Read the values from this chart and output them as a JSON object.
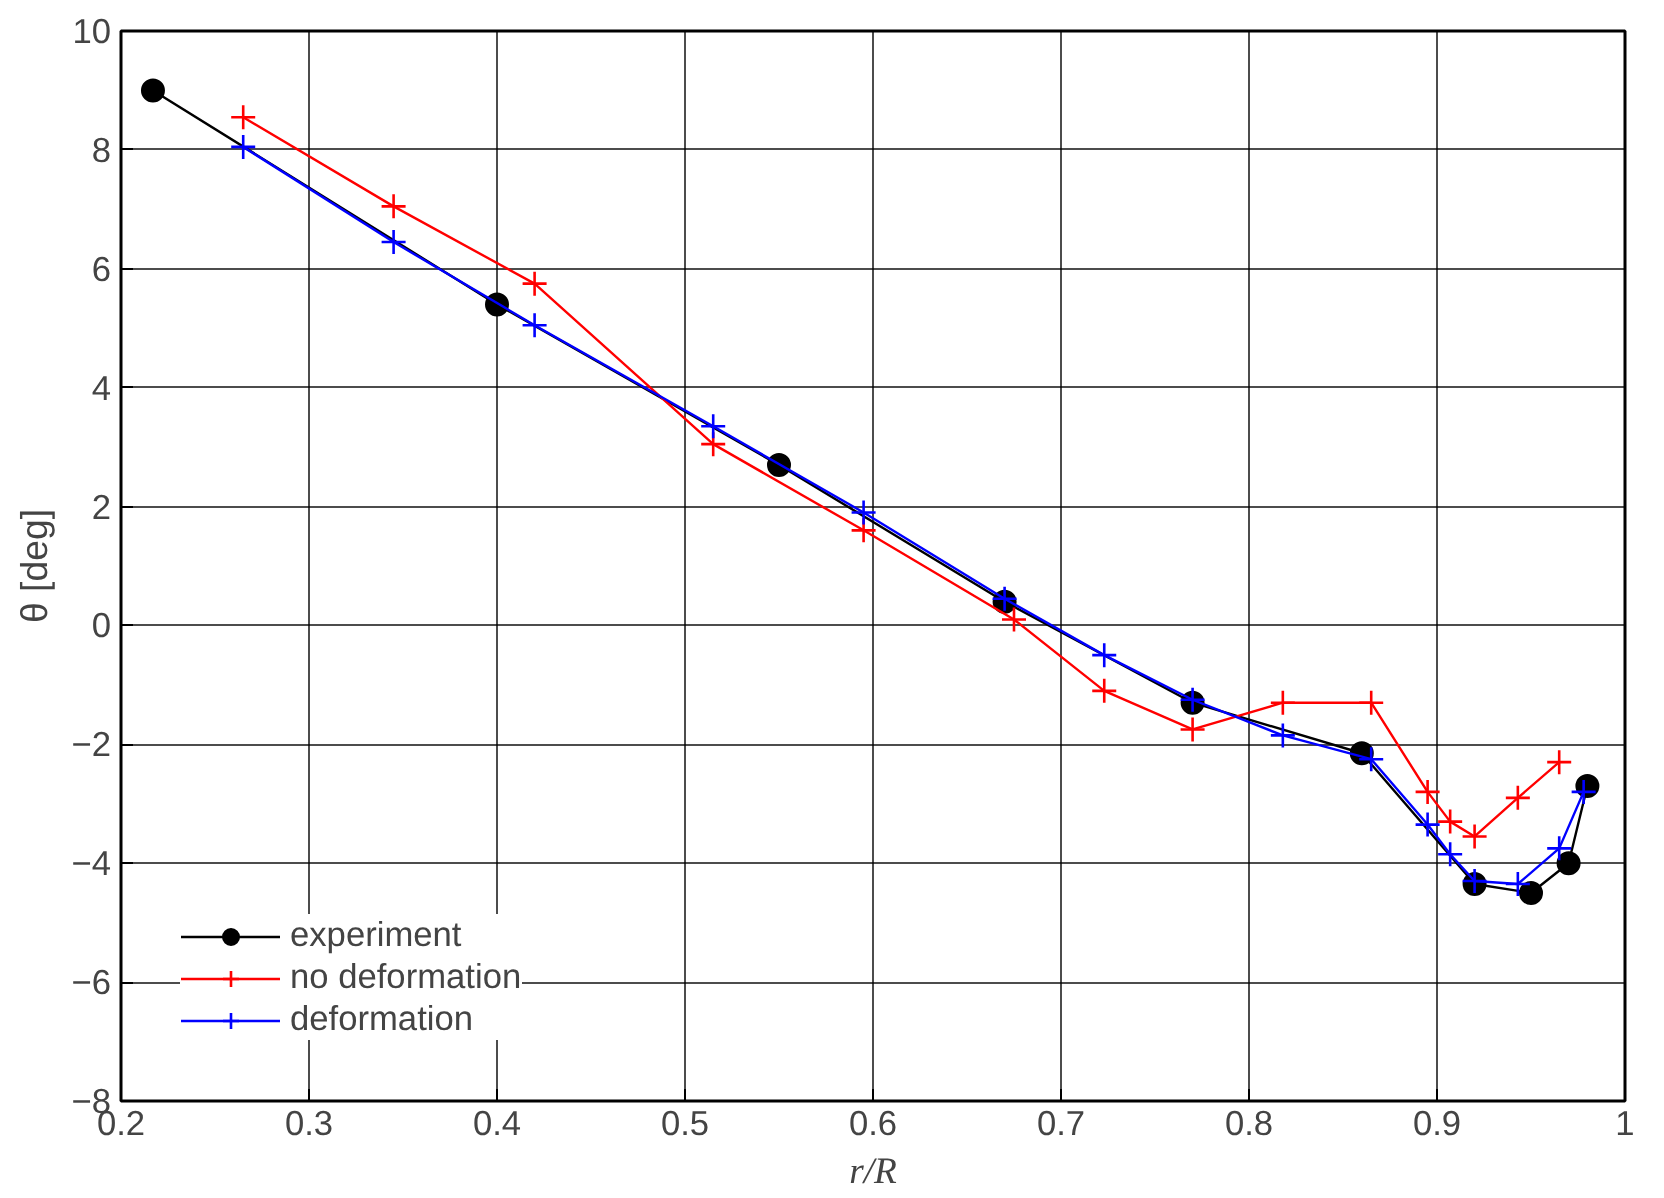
{
  "chart_data": {
    "type": "line",
    "xlabel": "r/R",
    "ylabel": "θ [deg]",
    "xlim": [
      0.2,
      1
    ],
    "ylim": [
      -8,
      10
    ],
    "xticks": [
      0.2,
      0.3,
      0.4,
      0.5,
      0.6,
      0.7,
      0.8,
      0.9,
      1
    ],
    "yticks": [
      -8,
      -6,
      -4,
      -2,
      0,
      2,
      4,
      6,
      8,
      10
    ],
    "grid": true,
    "legend": "bottom left",
    "series": [
      {
        "name": "experiment",
        "color": "#000000",
        "marker": "circle",
        "x": [
          0.217,
          0.4,
          0.55,
          0.67,
          0.77,
          0.86,
          0.92,
          0.95,
          0.97,
          0.98
        ],
        "values": [
          9.0,
          5.4,
          2.7,
          0.4,
          -1.3,
          -2.15,
          -4.35,
          -4.5,
          -4.0,
          -2.7
        ]
      },
      {
        "name": "no deformation",
        "color": "#ff0000",
        "marker": "cross",
        "x": [
          0.265,
          0.345,
          0.42,
          0.515,
          0.595,
          0.675,
          0.723,
          0.77,
          0.818,
          0.865,
          0.895,
          0.907,
          0.92,
          0.943,
          0.965
        ],
        "values": [
          8.55,
          7.05,
          5.75,
          3.05,
          1.6,
          0.1,
          -1.1,
          -1.75,
          -1.3,
          -1.3,
          -2.8,
          -3.3,
          -3.55,
          -2.9,
          -2.3
        ]
      },
      {
        "name": "deformation",
        "color": "#0000ff",
        "marker": "cross",
        "x": [
          0.265,
          0.345,
          0.42,
          0.515,
          0.595,
          0.67,
          0.723,
          0.77,
          0.818,
          0.865,
          0.895,
          0.907,
          0.92,
          0.943,
          0.965,
          0.978
        ],
        "values": [
          8.05,
          6.45,
          5.05,
          3.35,
          1.9,
          0.45,
          -0.5,
          -1.25,
          -1.85,
          -2.25,
          -3.35,
          -3.85,
          -4.3,
          -4.35,
          -3.75,
          -2.8
        ]
      }
    ]
  }
}
